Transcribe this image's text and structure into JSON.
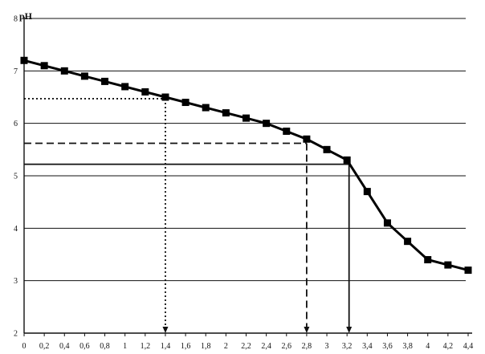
{
  "chart_data": {
    "type": "line",
    "ylabel": "pH",
    "xlabel": "",
    "xlim": [
      0,
      4.4
    ],
    "ylim": [
      2,
      8
    ],
    "x_ticks": [
      "0",
      "0,2",
      "0,4",
      "0,6",
      "0,8",
      "1",
      "1,2",
      "1,4",
      "1,6",
      "1,8",
      "2",
      "2,2",
      "2,4",
      "2,6",
      "2,8",
      "3",
      "3,2",
      "3,4",
      "3,6",
      "3,8",
      "4",
      "4,2",
      "4,4"
    ],
    "y_ticks": [
      "2",
      "3",
      "4",
      "5",
      "6",
      "7",
      "8"
    ],
    "grid": "horizontal",
    "series": [
      {
        "x": [
          0,
          0.2,
          0.4,
          0.6,
          0.8,
          1.0,
          1.2,
          1.4,
          1.6,
          1.8,
          2.0,
          2.2,
          2.4,
          2.6,
          2.8,
          3.0,
          3.2,
          3.4,
          3.6,
          3.8,
          4.0,
          4.2,
          4.4
        ],
        "values": [
          7.2,
          7.1,
          7.0,
          6.9,
          6.8,
          6.7,
          6.6,
          6.5,
          6.4,
          6.3,
          6.2,
          6.1,
          6.0,
          5.85,
          5.7,
          5.5,
          5.3,
          4.7,
          4.1,
          3.75,
          3.4,
          3.3,
          3.2
        ]
      }
    ],
    "reference_lines": [
      {
        "style": "dotted",
        "x": 1.4,
        "y": 6.47
      },
      {
        "style": "dashed",
        "x": 2.8,
        "y": 5.62
      },
      {
        "style": "solid",
        "x": 3.22,
        "y": 5.22
      }
    ]
  }
}
